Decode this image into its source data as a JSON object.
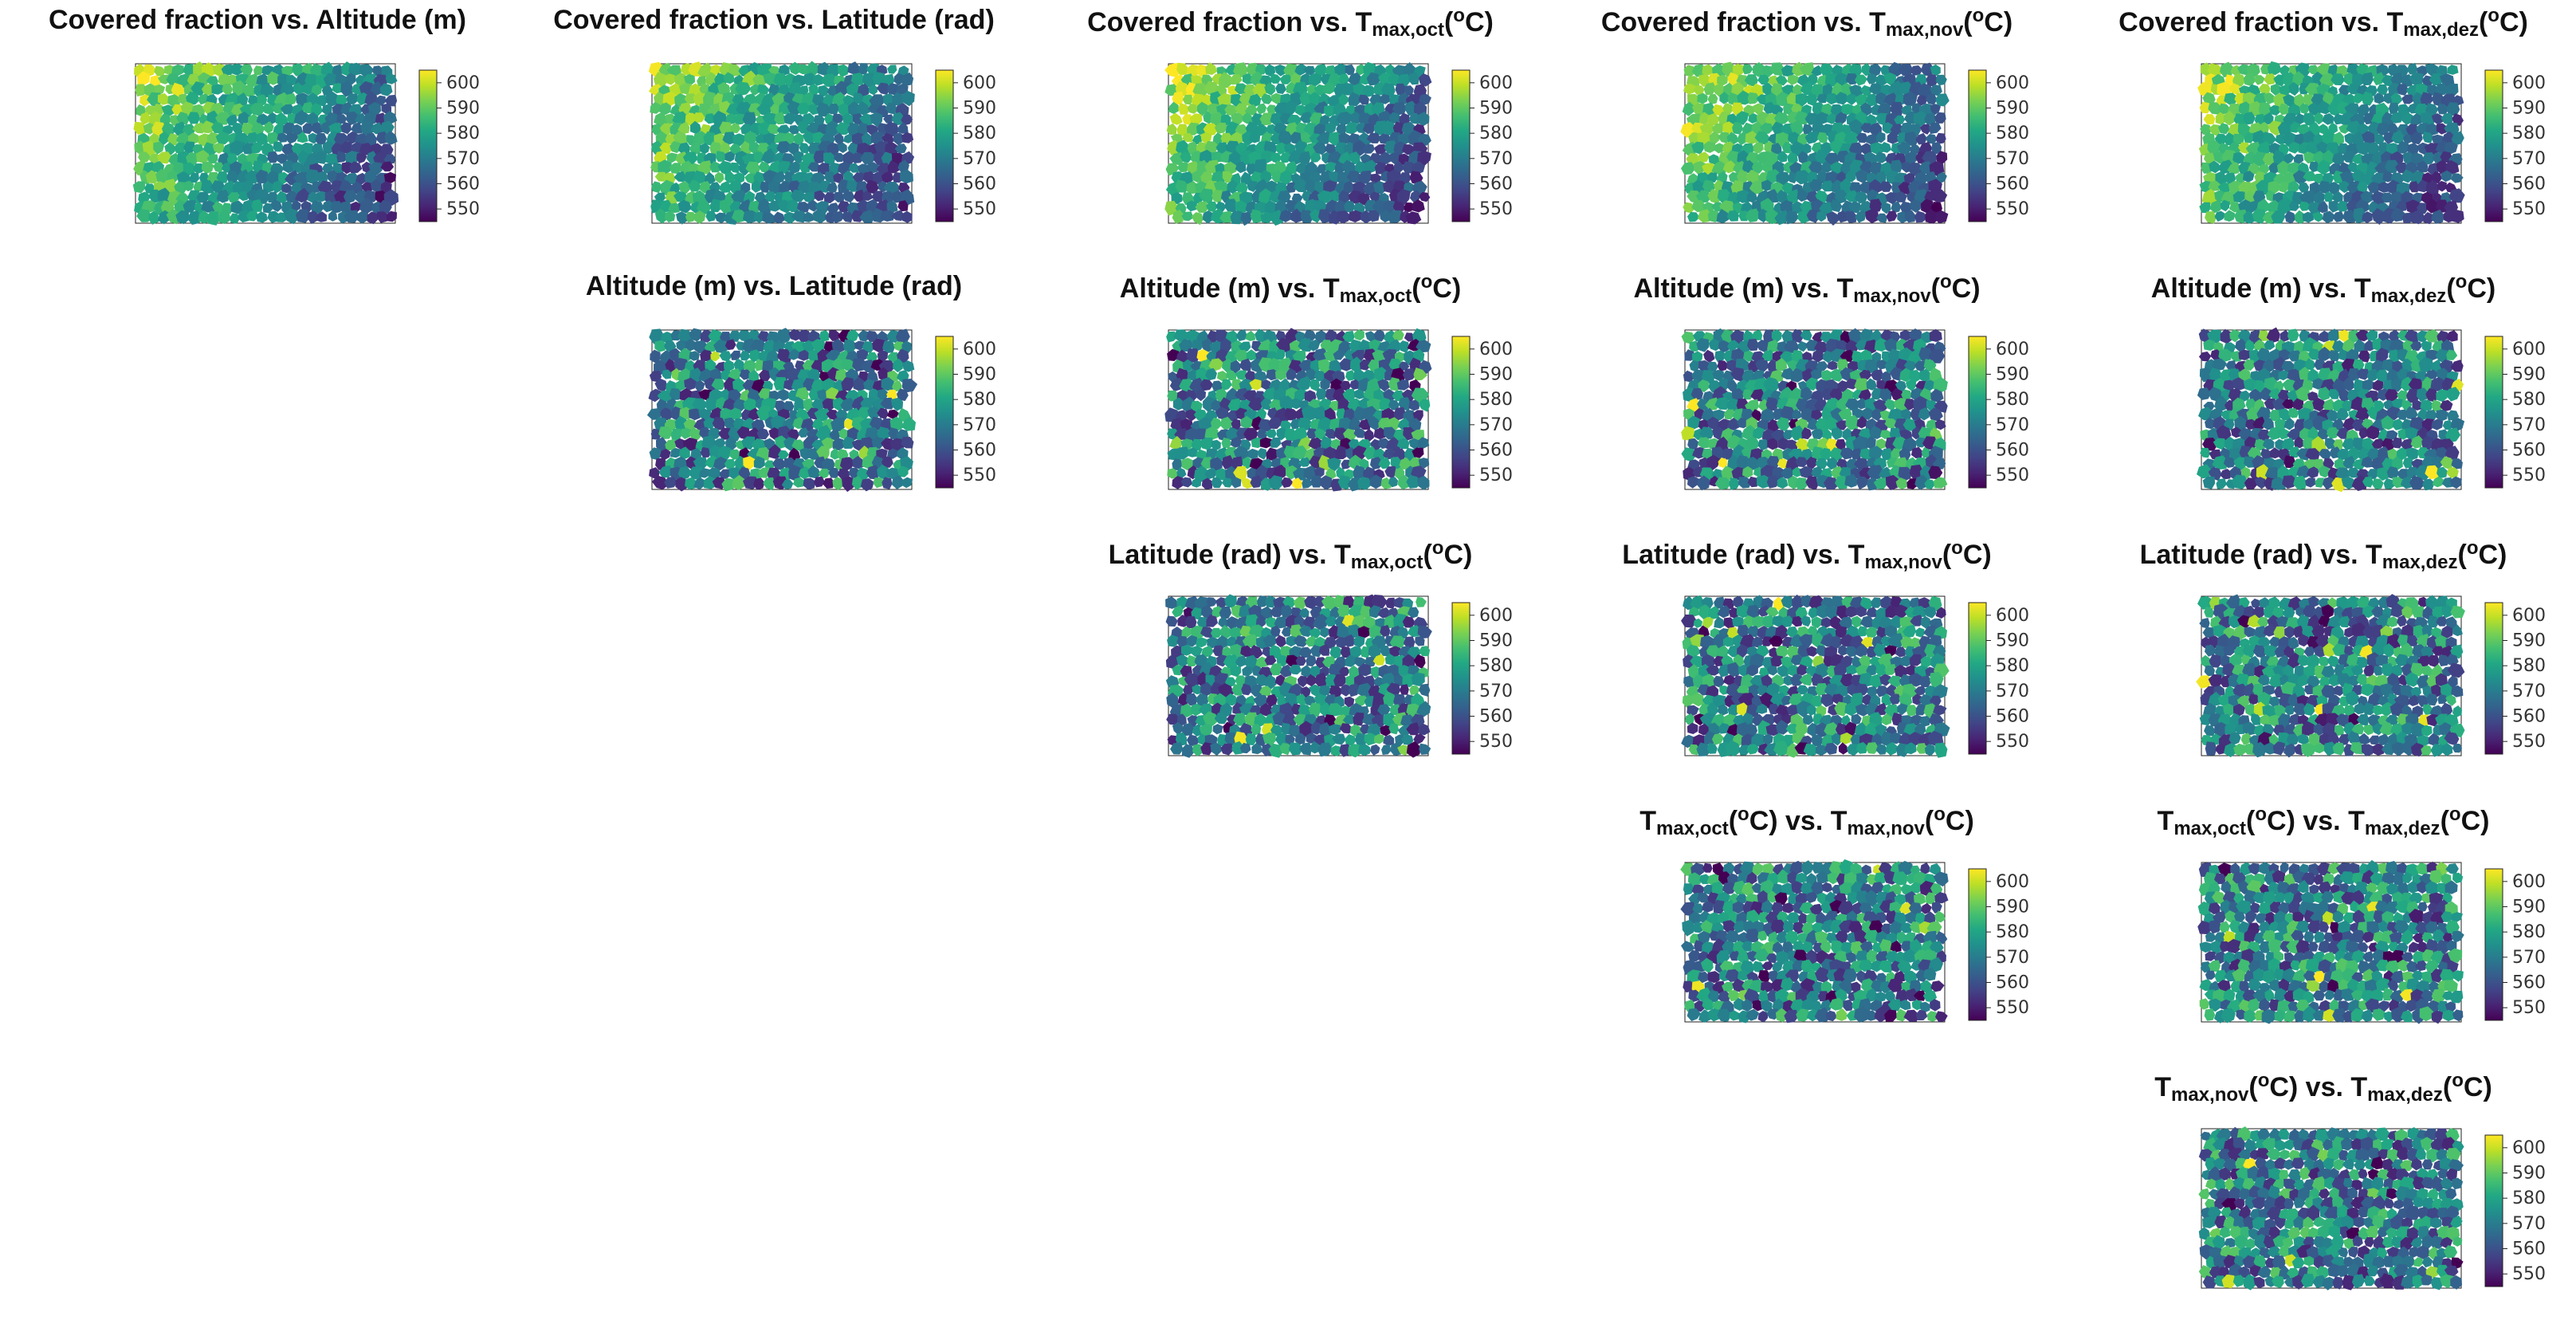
{
  "chart_data": [
    {
      "type": "heatmap",
      "row": 0,
      "col": 0,
      "title_parts": [
        [
          "Covered fraction vs. Altitude (m)",
          ""
        ]
      ],
      "x_var": "Covered fraction",
      "y_var": "Altitude (m)",
      "pattern": "gradient",
      "colorbar": {
        "ticks": [
          600,
          590,
          580,
          570,
          560,
          550
        ],
        "range": [
          545,
          605
        ]
      }
    },
    {
      "type": "heatmap",
      "row": 0,
      "col": 1,
      "title_parts": [
        [
          "Covered fraction vs. Latitude (rad)",
          ""
        ]
      ],
      "x_var": "Covered fraction",
      "y_var": "Latitude (rad)",
      "pattern": "gradient",
      "colorbar": {
        "ticks": [
          600,
          590,
          580,
          570,
          560,
          550
        ],
        "range": [
          545,
          605
        ]
      }
    },
    {
      "type": "heatmap",
      "row": 0,
      "col": 2,
      "title_parts": [
        [
          "Covered fraction vs. T",
          ""
        ],
        [
          "max,oct",
          "sub"
        ],
        [
          "(",
          ""
        ],
        [
          "o",
          "sup"
        ],
        [
          "C)",
          ""
        ]
      ],
      "x_var": "Covered fraction",
      "y_var": "Tmax,oct (oC)",
      "pattern": "gradient",
      "colorbar": {
        "ticks": [
          600,
          590,
          580,
          570,
          560,
          550
        ],
        "range": [
          545,
          605
        ]
      }
    },
    {
      "type": "heatmap",
      "row": 0,
      "col": 3,
      "title_parts": [
        [
          "Covered fraction vs. T",
          ""
        ],
        [
          "max,nov",
          "sub"
        ],
        [
          "(",
          ""
        ],
        [
          "o",
          "sup"
        ],
        [
          "C)",
          ""
        ]
      ],
      "x_var": "Covered fraction",
      "y_var": "Tmax,nov (oC)",
      "pattern": "gradient",
      "colorbar": {
        "ticks": [
          600,
          590,
          580,
          570,
          560,
          550
        ],
        "range": [
          545,
          605
        ]
      }
    },
    {
      "type": "heatmap",
      "row": 0,
      "col": 4,
      "title_parts": [
        [
          "Covered fraction vs. T",
          ""
        ],
        [
          "max,dez",
          "sub"
        ],
        [
          "(",
          ""
        ],
        [
          "o",
          "sup"
        ],
        [
          "C)",
          ""
        ]
      ],
      "x_var": "Covered fraction",
      "y_var": "Tmax,dez (oC)",
      "pattern": "gradient",
      "colorbar": {
        "ticks": [
          600,
          590,
          580,
          570,
          560,
          550
        ],
        "range": [
          545,
          605
        ]
      }
    },
    {
      "type": "heatmap",
      "row": 1,
      "col": 1,
      "title_parts": [
        [
          "Altitude (m) vs. Latitude (rad)",
          ""
        ]
      ],
      "x_var": "Altitude (m)",
      "y_var": "Latitude (rad)",
      "pattern": "noise",
      "colorbar": {
        "ticks": [
          600,
          590,
          580,
          570,
          560,
          550
        ],
        "range": [
          545,
          605
        ]
      }
    },
    {
      "type": "heatmap",
      "row": 1,
      "col": 2,
      "title_parts": [
        [
          "Altitude (m) vs. T",
          ""
        ],
        [
          "max,oct",
          "sub"
        ],
        [
          "(",
          ""
        ],
        [
          "o",
          "sup"
        ],
        [
          "C)",
          ""
        ]
      ],
      "x_var": "Altitude (m)",
      "y_var": "Tmax,oct (oC)",
      "pattern": "noise",
      "colorbar": {
        "ticks": [
          600,
          590,
          580,
          570,
          560,
          550
        ],
        "range": [
          545,
          605
        ]
      }
    },
    {
      "type": "heatmap",
      "row": 1,
      "col": 3,
      "title_parts": [
        [
          "Altitude (m) vs. T",
          ""
        ],
        [
          "max,nov",
          "sub"
        ],
        [
          "(",
          ""
        ],
        [
          "o",
          "sup"
        ],
        [
          "C)",
          ""
        ]
      ],
      "x_var": "Altitude (m)",
      "y_var": "Tmax,nov (oC)",
      "pattern": "noise",
      "colorbar": {
        "ticks": [
          600,
          590,
          580,
          570,
          560,
          550
        ],
        "range": [
          545,
          605
        ]
      }
    },
    {
      "type": "heatmap",
      "row": 1,
      "col": 4,
      "title_parts": [
        [
          "Altitude (m) vs. T",
          ""
        ],
        [
          "max,dez",
          "sub"
        ],
        [
          "(",
          ""
        ],
        [
          "o",
          "sup"
        ],
        [
          "C)",
          ""
        ]
      ],
      "x_var": "Altitude (m)",
      "y_var": "Tmax,dez (oC)",
      "pattern": "noise",
      "colorbar": {
        "ticks": [
          600,
          590,
          580,
          570,
          560,
          550
        ],
        "range": [
          545,
          605
        ]
      }
    },
    {
      "type": "heatmap",
      "row": 2,
      "col": 2,
      "title_parts": [
        [
          "Latitude (rad) vs. T",
          ""
        ],
        [
          "max,oct",
          "sub"
        ],
        [
          "(",
          ""
        ],
        [
          "o",
          "sup"
        ],
        [
          "C)",
          ""
        ]
      ],
      "x_var": "Latitude (rad)",
      "y_var": "Tmax,oct (oC)",
      "pattern": "noise",
      "colorbar": {
        "ticks": [
          600,
          590,
          580,
          570,
          560,
          550
        ],
        "range": [
          545,
          605
        ]
      }
    },
    {
      "type": "heatmap",
      "row": 2,
      "col": 3,
      "title_parts": [
        [
          "Latitude (rad) vs. T",
          ""
        ],
        [
          "max,nov",
          "sub"
        ],
        [
          "(",
          ""
        ],
        [
          "o",
          "sup"
        ],
        [
          "C)",
          ""
        ]
      ],
      "x_var": "Latitude (rad)",
      "y_var": "Tmax,nov (oC)",
      "pattern": "noise",
      "colorbar": {
        "ticks": [
          600,
          590,
          580,
          570,
          560,
          550
        ],
        "range": [
          545,
          605
        ]
      }
    },
    {
      "type": "heatmap",
      "row": 2,
      "col": 4,
      "title_parts": [
        [
          "Latitude (rad) vs. T",
          ""
        ],
        [
          "max,dez",
          "sub"
        ],
        [
          "(",
          ""
        ],
        [
          "o",
          "sup"
        ],
        [
          "C)",
          ""
        ]
      ],
      "x_var": "Latitude (rad)",
      "y_var": "Tmax,dez (oC)",
      "pattern": "noise",
      "colorbar": {
        "ticks": [
          600,
          590,
          580,
          570,
          560,
          550
        ],
        "range": [
          545,
          605
        ]
      }
    },
    {
      "type": "heatmap",
      "row": 3,
      "col": 3,
      "title_parts": [
        [
          "T",
          ""
        ],
        [
          "max,oct",
          "sub"
        ],
        [
          "(",
          ""
        ],
        [
          "o",
          "sup"
        ],
        [
          "C) vs. T",
          ""
        ],
        [
          "max,nov",
          "sub"
        ],
        [
          "(",
          ""
        ],
        [
          "o",
          "sup"
        ],
        [
          "C)",
          ""
        ]
      ],
      "x_var": "Tmax,oct (oC)",
      "y_var": "Tmax,nov (oC)",
      "pattern": "noise",
      "colorbar": {
        "ticks": [
          600,
          590,
          580,
          570,
          560,
          550
        ],
        "range": [
          545,
          605
        ]
      }
    },
    {
      "type": "heatmap",
      "row": 3,
      "col": 4,
      "title_parts": [
        [
          "T",
          ""
        ],
        [
          "max,oct",
          "sub"
        ],
        [
          "(",
          ""
        ],
        [
          "o",
          "sup"
        ],
        [
          "C) vs. T",
          ""
        ],
        [
          "max,dez",
          "sub"
        ],
        [
          "(",
          ""
        ],
        [
          "o",
          "sup"
        ],
        [
          "C)",
          ""
        ]
      ],
      "x_var": "Tmax,oct (oC)",
      "y_var": "Tmax,dez (oC)",
      "pattern": "noise",
      "colorbar": {
        "ticks": [
          600,
          590,
          580,
          570,
          560,
          550
        ],
        "range": [
          545,
          605
        ]
      }
    },
    {
      "type": "heatmap",
      "row": 4,
      "col": 4,
      "title_parts": [
        [
          "T",
          ""
        ],
        [
          "max,nov",
          "sub"
        ],
        [
          "(",
          ""
        ],
        [
          "o",
          "sup"
        ],
        [
          "C) vs. T",
          ""
        ],
        [
          "max,dez",
          "sub"
        ],
        [
          "(",
          ""
        ],
        [
          "o",
          "sup"
        ],
        [
          "C)",
          ""
        ]
      ],
      "x_var": "Tmax,nov (oC)",
      "y_var": "Tmax,dez (oC)",
      "pattern": "noise",
      "colorbar": {
        "ticks": [
          600,
          590,
          580,
          570,
          560,
          550
        ],
        "range": [
          545,
          605
        ]
      }
    }
  ]
}
